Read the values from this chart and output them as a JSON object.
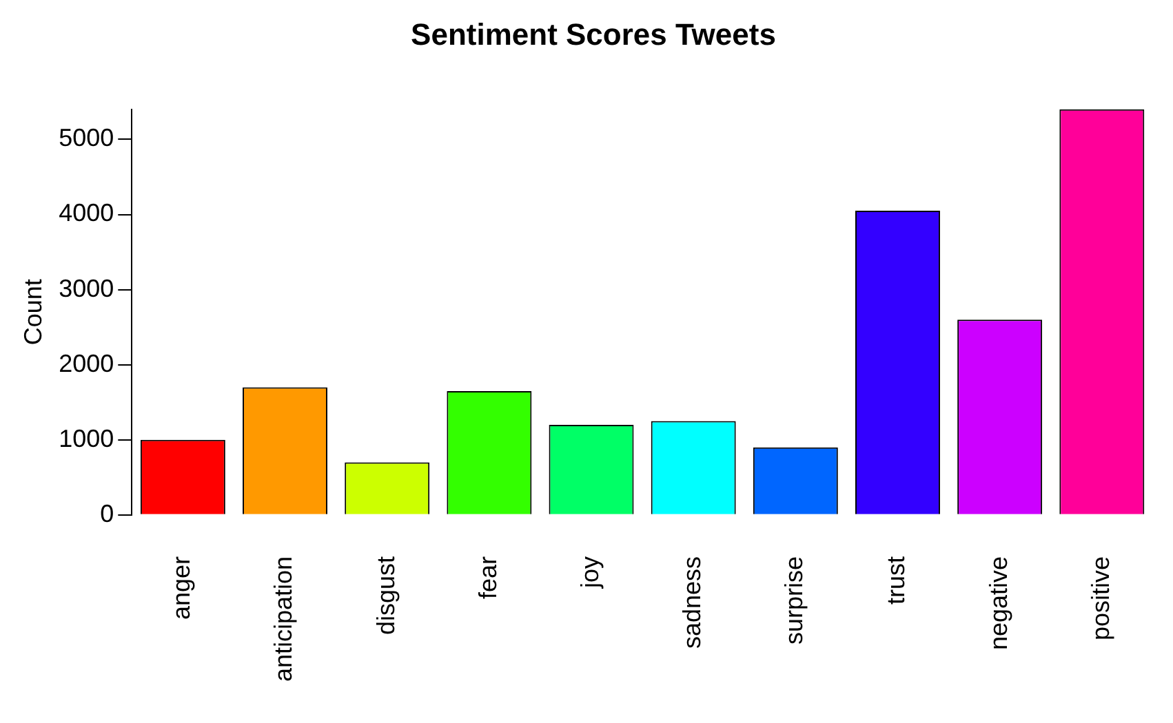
{
  "chart_data": {
    "type": "bar",
    "title": "Sentiment Scores Tweets",
    "ylabel": "Count",
    "categories": [
      "anger",
      "anticipation",
      "disgust",
      "fear",
      "joy",
      "sadness",
      "surprise",
      "trust",
      "negative",
      "positive"
    ],
    "values": [
      1000,
      1700,
      700,
      1650,
      1200,
      1250,
      900,
      4050,
      2600,
      5400
    ],
    "colors": [
      "#ff0000",
      "#ff9900",
      "#ccff00",
      "#33ff00",
      "#00ff66",
      "#00ffff",
      "#0066ff",
      "#3300ff",
      "#cc00ff",
      "#ff0099"
    ],
    "ylim": [
      0,
      5400
    ],
    "yticks": [
      0,
      1000,
      2000,
      3000,
      4000,
      5000
    ],
    "grid": false,
    "legend": false
  }
}
